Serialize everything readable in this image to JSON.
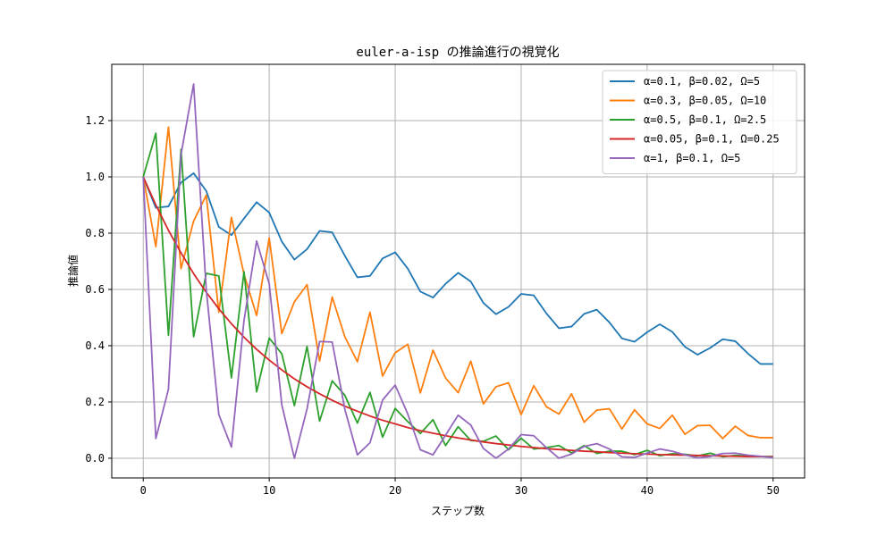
{
  "chart_data": {
    "type": "line",
    "title": "euler-a-isp の推論進行の視覚化",
    "xlabel": "ステップ数",
    "ylabel": "推論値",
    "xlim": [
      -2.5,
      52.5
    ],
    "ylim": [
      -0.07,
      1.4
    ],
    "xticks": [
      0,
      10,
      20,
      30,
      40,
      50
    ],
    "xtick_labels": [
      "0",
      "10",
      "20",
      "30",
      "40",
      "50"
    ],
    "yticks": [
      0.0,
      0.2,
      0.4,
      0.6,
      0.8,
      1.0,
      1.2
    ],
    "ytick_labels": [
      "0.0",
      "0.2",
      "0.4",
      "0.6",
      "0.8",
      "1.0",
      "1.2"
    ],
    "grid": true,
    "legend_position": "top-right",
    "x": [
      0,
      1,
      2,
      3,
      4,
      5,
      6,
      7,
      8,
      9,
      10,
      11,
      12,
      13,
      14,
      15,
      16,
      17,
      18,
      19,
      20,
      21,
      22,
      23,
      24,
      25,
      26,
      27,
      28,
      29,
      30,
      31,
      32,
      33,
      34,
      35,
      36,
      37,
      38,
      39,
      40,
      41,
      42,
      43,
      44,
      45,
      46,
      47,
      48,
      49,
      50
    ],
    "series": [
      {
        "name": "α=0.1, β=0.02, Ω=5",
        "color": "#1f77b4",
        "values": [
          1.0,
          0.89,
          0.895,
          0.98,
          1.013,
          0.95,
          0.822,
          0.793,
          0.852,
          0.91,
          0.873,
          0.77,
          0.706,
          0.743,
          0.808,
          0.803,
          0.72,
          0.643,
          0.648,
          0.71,
          0.732,
          0.674,
          0.592,
          0.571,
          0.62,
          0.659,
          0.628,
          0.552,
          0.512,
          0.538,
          0.584,
          0.579,
          0.515,
          0.462,
          0.468,
          0.513,
          0.528,
          0.483,
          0.426,
          0.414,
          0.448,
          0.476,
          0.449,
          0.396,
          0.368,
          0.392,
          0.423,
          0.416,
          0.372,
          0.335,
          0.335
        ]
      },
      {
        "name": "α=0.3, β=0.05, Ω=10",
        "color": "#ff7f0e",
        "values": [
          1.0,
          0.752,
          1.177,
          0.674,
          0.843,
          0.935,
          0.519,
          0.856,
          0.654,
          0.507,
          0.783,
          0.443,
          0.556,
          0.617,
          0.345,
          0.573,
          0.432,
          0.343,
          0.519,
          0.292,
          0.375,
          0.405,
          0.232,
          0.384,
          0.285,
          0.233,
          0.345,
          0.193,
          0.254,
          0.268,
          0.155,
          0.258,
          0.183,
          0.157,
          0.229,
          0.128,
          0.171,
          0.176,
          0.104,
          0.172,
          0.122,
          0.106,
          0.153,
          0.085,
          0.116,
          0.117,
          0.07,
          0.114,
          0.081,
          0.073,
          0.073
        ]
      },
      {
        "name": "α=0.5, β=0.1, Ω=2.5",
        "color": "#2ca02c",
        "values": [
          1.0,
          1.155,
          0.437,
          1.098,
          0.432,
          0.657,
          0.648,
          0.286,
          0.663,
          0.236,
          0.427,
          0.371,
          0.187,
          0.397,
          0.132,
          0.275,
          0.224,
          0.125,
          0.234,
          0.075,
          0.177,
          0.13,
          0.088,
          0.137,
          0.045,
          0.112,
          0.063,
          0.06,
          0.079,
          0.03,
          0.071,
          0.033,
          0.038,
          0.045,
          0.019,
          0.045,
          0.017,
          0.025,
          0.025,
          0.013,
          0.028,
          0.009,
          0.016,
          0.014,
          0.008,
          0.018,
          0.005,
          0.01,
          0.008,
          0.006,
          0.006
        ]
      },
      {
        "name": "α=0.05, β=0.1, Ω=0.25",
        "color": "#d62728",
        "values": [
          1.0,
          0.9,
          0.81,
          0.73,
          0.656,
          0.59,
          0.531,
          0.478,
          0.43,
          0.387,
          0.349,
          0.314,
          0.282,
          0.254,
          0.229,
          0.206,
          0.185,
          0.167,
          0.15,
          0.135,
          0.122,
          0.109,
          0.098,
          0.089,
          0.08,
          0.072,
          0.065,
          0.058,
          0.052,
          0.047,
          0.042,
          0.038,
          0.034,
          0.031,
          0.028,
          0.025,
          0.023,
          0.02,
          0.018,
          0.016,
          0.015,
          0.013,
          0.012,
          0.011,
          0.01,
          0.009,
          0.008,
          0.007,
          0.006,
          0.006,
          0.005
        ]
      },
      {
        "name": "α=1, β=0.1, Ω=5",
        "color": "#9467bd",
        "values": [
          1.0,
          0.07,
          0.245,
          1.08,
          1.33,
          0.6,
          0.155,
          0.04,
          0.49,
          0.772,
          0.62,
          0.19,
          0.0,
          0.175,
          0.415,
          0.413,
          0.175,
          0.012,
          0.055,
          0.207,
          0.26,
          0.157,
          0.03,
          0.012,
          0.082,
          0.153,
          0.118,
          0.035,
          0.0,
          0.033,
          0.084,
          0.08,
          0.038,
          0.0,
          0.015,
          0.042,
          0.052,
          0.033,
          0.005,
          0.003,
          0.018,
          0.033,
          0.025,
          0.012,
          0.001,
          0.006,
          0.017,
          0.018,
          0.011,
          0.007,
          0.002
        ]
      }
    ]
  }
}
